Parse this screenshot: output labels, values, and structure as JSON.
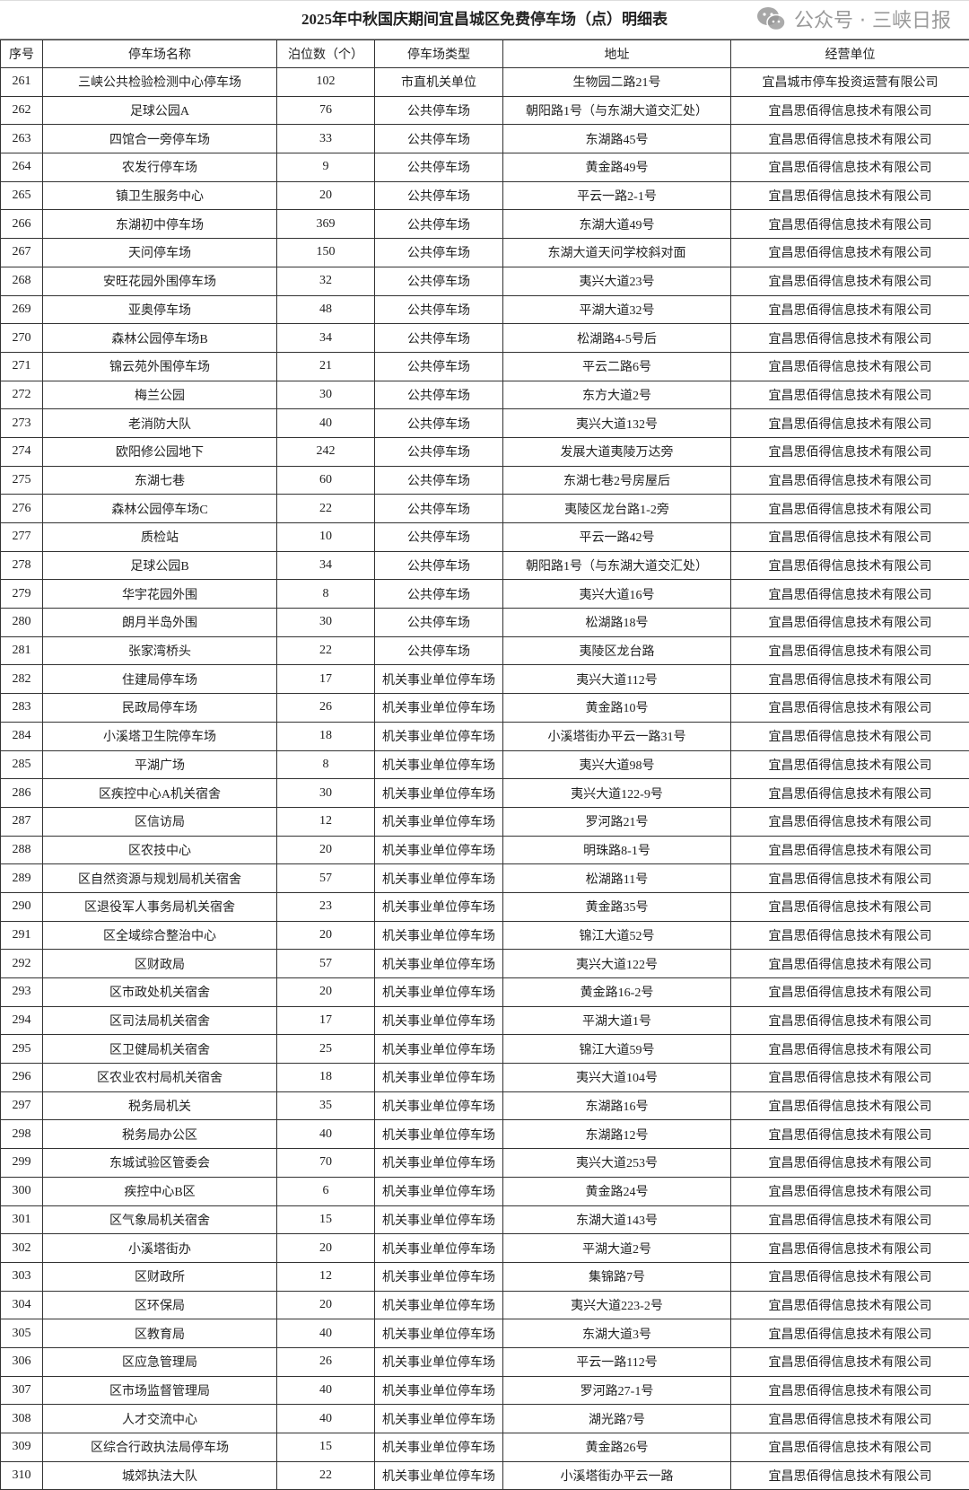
{
  "title": "2025年中秋国庆期间宜昌城区免费停车场（点）明细表",
  "columns": [
    "序号",
    "停车场名称",
    "泊位数（个）",
    "停车场类型",
    "地址",
    "经营单位"
  ],
  "rows": [
    [
      "261",
      "三峡公共检验检测中心停车场",
      "102",
      "市直机关单位",
      "生物园二路21号",
      "宜昌城市停车投资运营有限公司"
    ],
    [
      "262",
      "足球公园A",
      "76",
      "公共停车场",
      "朝阳路1号（与东湖大道交汇处）",
      "宜昌思佰得信息技术有限公司"
    ],
    [
      "263",
      "四馆合一旁停车场",
      "33",
      "公共停车场",
      "东湖路45号",
      "宜昌思佰得信息技术有限公司"
    ],
    [
      "264",
      "农发行停车场",
      "9",
      "公共停车场",
      "黄金路49号",
      "宜昌思佰得信息技术有限公司"
    ],
    [
      "265",
      "镇卫生服务中心",
      "20",
      "公共停车场",
      "平云一路2-1号",
      "宜昌思佰得信息技术有限公司"
    ],
    [
      "266",
      "东湖初中停车场",
      "369",
      "公共停车场",
      "东湖大道49号",
      "宜昌思佰得信息技术有限公司"
    ],
    [
      "267",
      "天问停车场",
      "150",
      "公共停车场",
      "东湖大道天问学校斜对面",
      "宜昌思佰得信息技术有限公司"
    ],
    [
      "268",
      "安旺花园外围停车场",
      "32",
      "公共停车场",
      "夷兴大道23号",
      "宜昌思佰得信息技术有限公司"
    ],
    [
      "269",
      "亚奥停车场",
      "48",
      "公共停车场",
      "平湖大道32号",
      "宜昌思佰得信息技术有限公司"
    ],
    [
      "270",
      "森林公园停车场B",
      "34",
      "公共停车场",
      "松湖路4-5号后",
      "宜昌思佰得信息技术有限公司"
    ],
    [
      "271",
      "锦云苑外围停车场",
      "21",
      "公共停车场",
      "平云二路6号",
      "宜昌思佰得信息技术有限公司"
    ],
    [
      "272",
      "梅兰公园",
      "30",
      "公共停车场",
      "东方大道2号",
      "宜昌思佰得信息技术有限公司"
    ],
    [
      "273",
      "老消防大队",
      "40",
      "公共停车场",
      "夷兴大道132号",
      "宜昌思佰得信息技术有限公司"
    ],
    [
      "274",
      "欧阳修公园地下",
      "242",
      "公共停车场",
      "发展大道夷陵万达旁",
      "宜昌思佰得信息技术有限公司"
    ],
    [
      "275",
      "东湖七巷",
      "60",
      "公共停车场",
      "东湖七巷2号房屋后",
      "宜昌思佰得信息技术有限公司"
    ],
    [
      "276",
      "森林公园停车场C",
      "22",
      "公共停车场",
      "夷陵区龙台路1-2旁",
      "宜昌思佰得信息技术有限公司"
    ],
    [
      "277",
      "质检站",
      "10",
      "公共停车场",
      "平云一路42号",
      "宜昌思佰得信息技术有限公司"
    ],
    [
      "278",
      "足球公园B",
      "34",
      "公共停车场",
      "朝阳路1号（与东湖大道交汇处）",
      "宜昌思佰得信息技术有限公司"
    ],
    [
      "279",
      "华宇花园外围",
      "8",
      "公共停车场",
      "夷兴大道16号",
      "宜昌思佰得信息技术有限公司"
    ],
    [
      "280",
      "朗月半岛外围",
      "30",
      "公共停车场",
      "松湖路18号",
      "宜昌思佰得信息技术有限公司"
    ],
    [
      "281",
      "张家湾桥头",
      "22",
      "公共停车场",
      "夷陵区龙台路",
      "宜昌思佰得信息技术有限公司"
    ],
    [
      "282",
      "住建局停车场",
      "17",
      "机关事业单位停车场",
      "夷兴大道112号",
      "宜昌思佰得信息技术有限公司"
    ],
    [
      "283",
      "民政局停车场",
      "26",
      "机关事业单位停车场",
      "黄金路10号",
      "宜昌思佰得信息技术有限公司"
    ],
    [
      "284",
      "小溪塔卫生院停车场",
      "18",
      "机关事业单位停车场",
      "小溪塔街办平云一路31号",
      "宜昌思佰得信息技术有限公司"
    ],
    [
      "285",
      "平湖广场",
      "8",
      "机关事业单位停车场",
      "夷兴大道98号",
      "宜昌思佰得信息技术有限公司"
    ],
    [
      "286",
      "区疾控中心A机关宿舍",
      "30",
      "机关事业单位停车场",
      "夷兴大道122-9号",
      "宜昌思佰得信息技术有限公司"
    ],
    [
      "287",
      "区信访局",
      "12",
      "机关事业单位停车场",
      "罗河路21号",
      "宜昌思佰得信息技术有限公司"
    ],
    [
      "288",
      "区农技中心",
      "20",
      "机关事业单位停车场",
      "明珠路8-1号",
      "宜昌思佰得信息技术有限公司"
    ],
    [
      "289",
      "区自然资源与规划局机关宿舍",
      "57",
      "机关事业单位停车场",
      "松湖路11号",
      "宜昌思佰得信息技术有限公司"
    ],
    [
      "290",
      "区退役军人事务局机关宿舍",
      "23",
      "机关事业单位停车场",
      "黄金路35号",
      "宜昌思佰得信息技术有限公司"
    ],
    [
      "291",
      "区全域综合整治中心",
      "20",
      "机关事业单位停车场",
      "锦江大道52号",
      "宜昌思佰得信息技术有限公司"
    ],
    [
      "292",
      "区财政局",
      "57",
      "机关事业单位停车场",
      "夷兴大道122号",
      "宜昌思佰得信息技术有限公司"
    ],
    [
      "293",
      "区市政处机关宿舍",
      "20",
      "机关事业单位停车场",
      "黄金路16-2号",
      "宜昌思佰得信息技术有限公司"
    ],
    [
      "294",
      "区司法局机关宿舍",
      "17",
      "机关事业单位停车场",
      "平湖大道1号",
      "宜昌思佰得信息技术有限公司"
    ],
    [
      "295",
      "区卫健局机关宿舍",
      "25",
      "机关事业单位停车场",
      "锦江大道59号",
      "宜昌思佰得信息技术有限公司"
    ],
    [
      "296",
      "区农业农村局机关宿舍",
      "18",
      "机关事业单位停车场",
      "夷兴大道104号",
      "宜昌思佰得信息技术有限公司"
    ],
    [
      "297",
      "税务局机关",
      "35",
      "机关事业单位停车场",
      "东湖路16号",
      "宜昌思佰得信息技术有限公司"
    ],
    [
      "298",
      "税务局办公区",
      "40",
      "机关事业单位停车场",
      "东湖路12号",
      "宜昌思佰得信息技术有限公司"
    ],
    [
      "299",
      "东城试验区管委会",
      "70",
      "机关事业单位停车场",
      "夷兴大道253号",
      "宜昌思佰得信息技术有限公司"
    ],
    [
      "300",
      "疾控中心B区",
      "6",
      "机关事业单位停车场",
      "黄金路24号",
      "宜昌思佰得信息技术有限公司"
    ],
    [
      "301",
      "区气象局机关宿舍",
      "15",
      "机关事业单位停车场",
      "东湖大道143号",
      "宜昌思佰得信息技术有限公司"
    ],
    [
      "302",
      "小溪塔街办",
      "20",
      "机关事业单位停车场",
      "平湖大道2号",
      "宜昌思佰得信息技术有限公司"
    ],
    [
      "303",
      "区财政所",
      "12",
      "机关事业单位停车场",
      "集锦路7号",
      "宜昌思佰得信息技术有限公司"
    ],
    [
      "304",
      "区环保局",
      "20",
      "机关事业单位停车场",
      "夷兴大道223-2号",
      "宜昌思佰得信息技术有限公司"
    ],
    [
      "305",
      "区教育局",
      "40",
      "机关事业单位停车场",
      "东湖大道3号",
      "宜昌思佰得信息技术有限公司"
    ],
    [
      "306",
      "区应急管理局",
      "26",
      "机关事业单位停车场",
      "平云一路112号",
      "宜昌思佰得信息技术有限公司"
    ],
    [
      "307",
      "区市场监督管理局",
      "40",
      "机关事业单位停车场",
      "罗河路27-1号",
      "宜昌思佰得信息技术有限公司"
    ],
    [
      "308",
      "人才交流中心",
      "40",
      "机关事业单位停车场",
      "湖光路7号",
      "宜昌思佰得信息技术有限公司"
    ],
    [
      "309",
      "区综合行政执法局停车场",
      "15",
      "机关事业单位停车场",
      "黄金路26号",
      "宜昌思佰得信息技术有限公司"
    ],
    [
      "310",
      "城郊执法大队",
      "22",
      "机关事业单位停车场",
      "小溪塔街办平云一路",
      "宜昌思佰得信息技术有限公司"
    ]
  ],
  "watermark": {
    "icon": "wechat-icon",
    "text": "公众号 · 三峡日报"
  }
}
